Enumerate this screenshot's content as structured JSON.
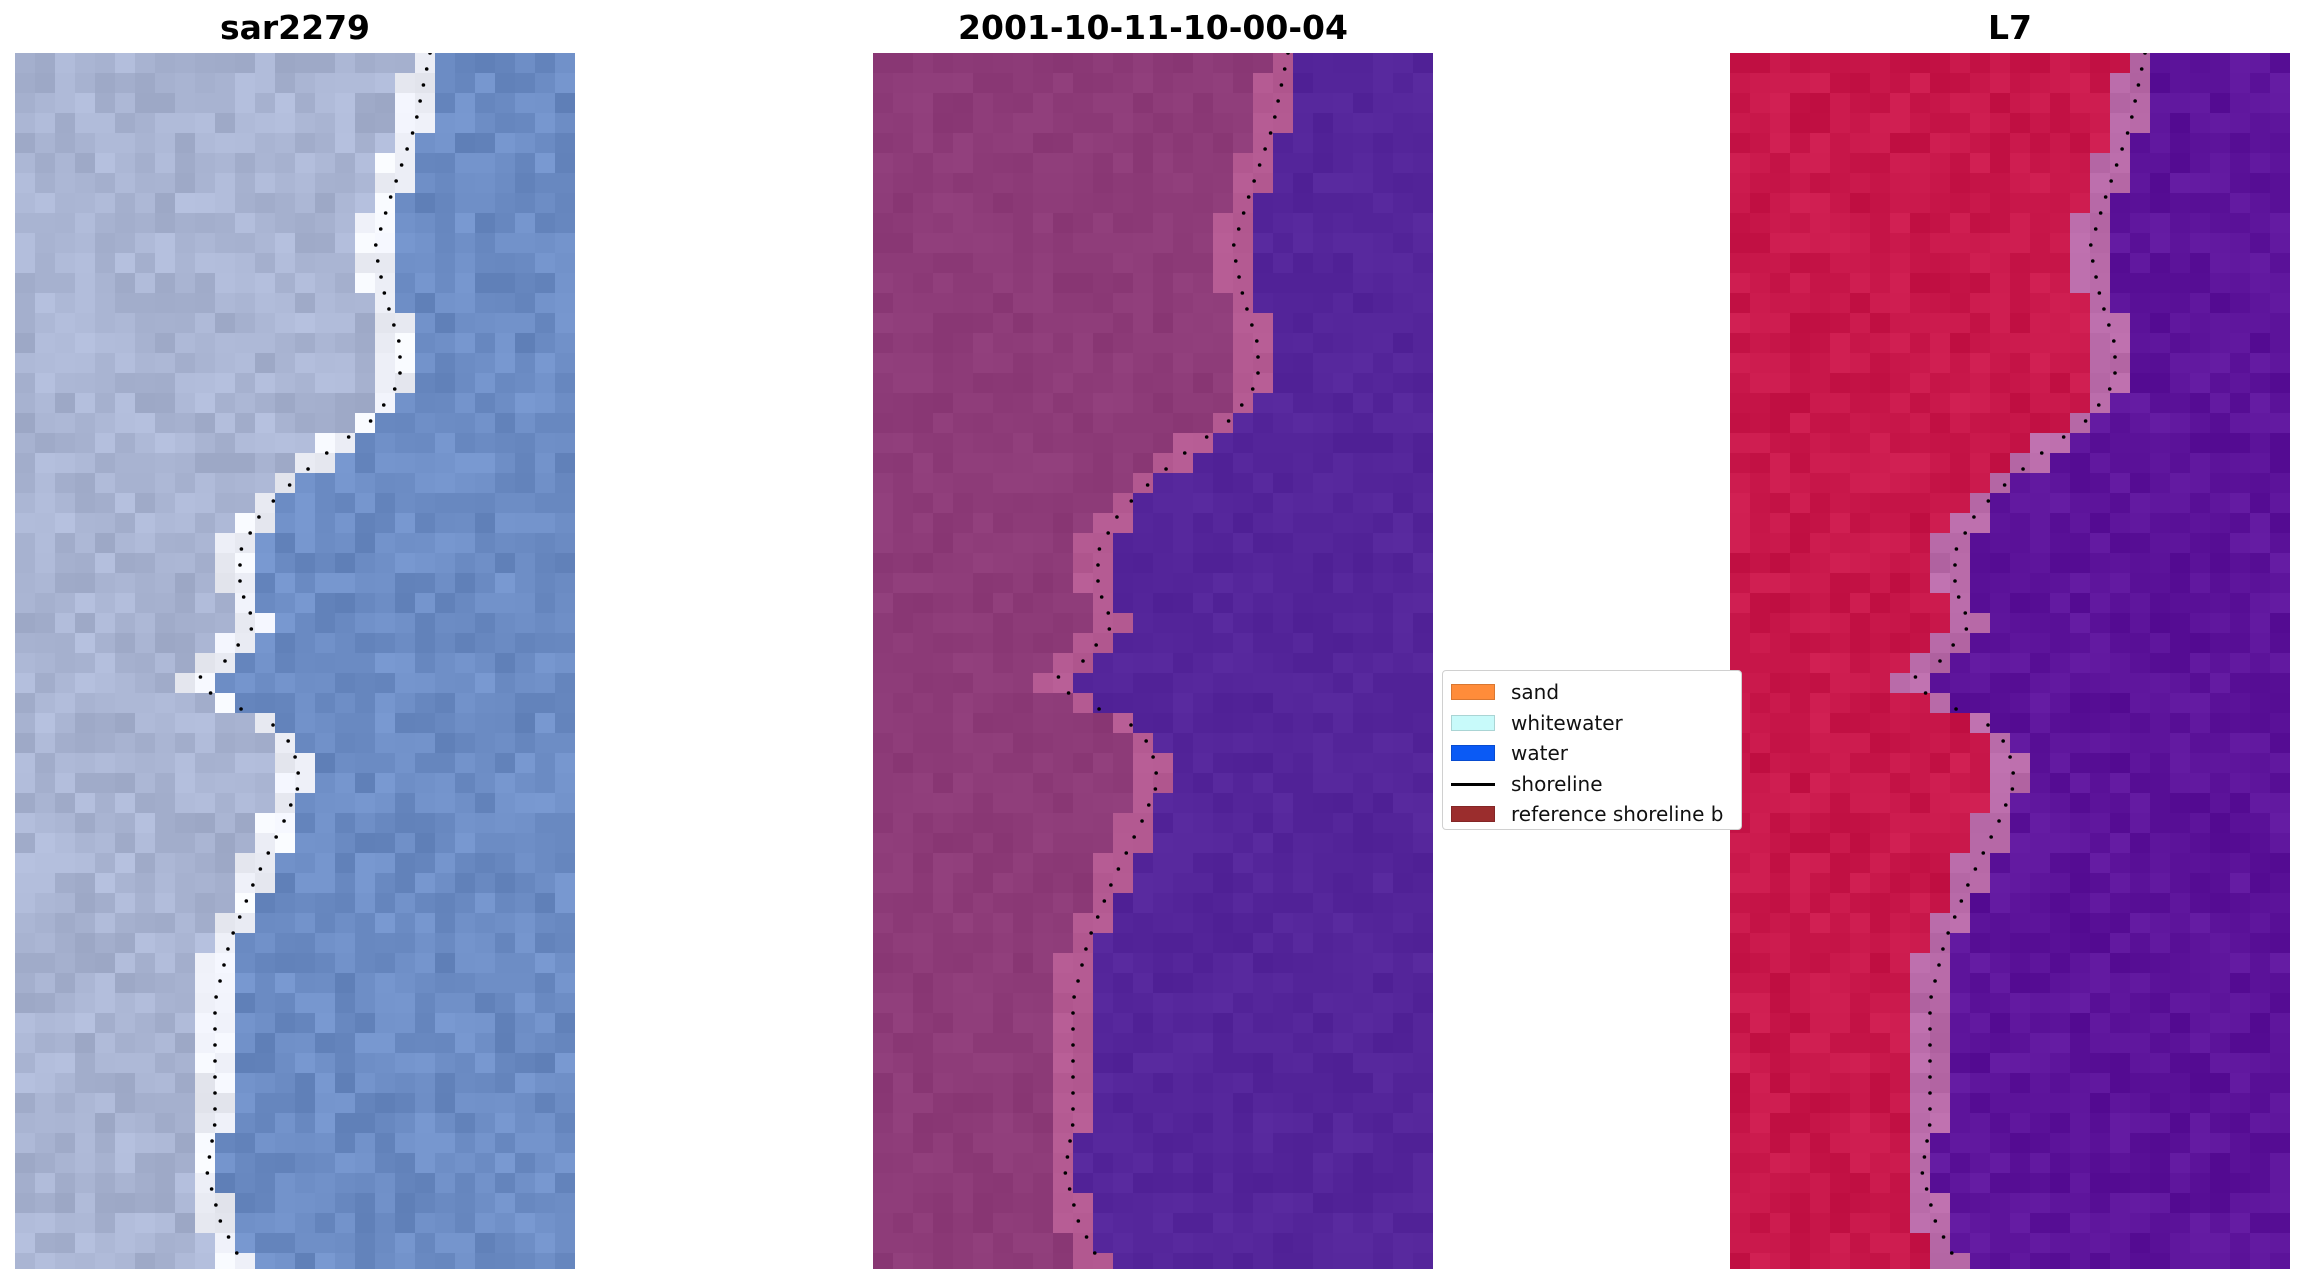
{
  "panels": [
    {
      "title": "sar2279"
    },
    {
      "title": "2001-10-11-10-00-04"
    },
    {
      "title": "L7"
    }
  ],
  "legend": {
    "items": [
      {
        "label": "sand",
        "color": "#ff8c3a",
        "kind": "patch"
      },
      {
        "label": "whitewater",
        "color": "#c8fafa",
        "kind": "patch"
      },
      {
        "label": "water",
        "color": "#0a5af5",
        "kind": "patch"
      },
      {
        "label": "shoreline",
        "color": "#000000",
        "kind": "line"
      },
      {
        "label": "reference shoreline b",
        "color": "#9b2d2d",
        "kind": "patch"
      }
    ]
  },
  "colors": {
    "rgb_land": "#a9b4d2",
    "rgb_water": "#6c8cc4",
    "rgb_beach": "#eef0f8",
    "class_land": "#8d3b78",
    "class_edge": "#b45a92",
    "class_water": "#54259a",
    "mndwi_land": "#c8174a",
    "mndwi_edge": "#b86aa8",
    "mndwi_water": "#5c139a"
  }
}
